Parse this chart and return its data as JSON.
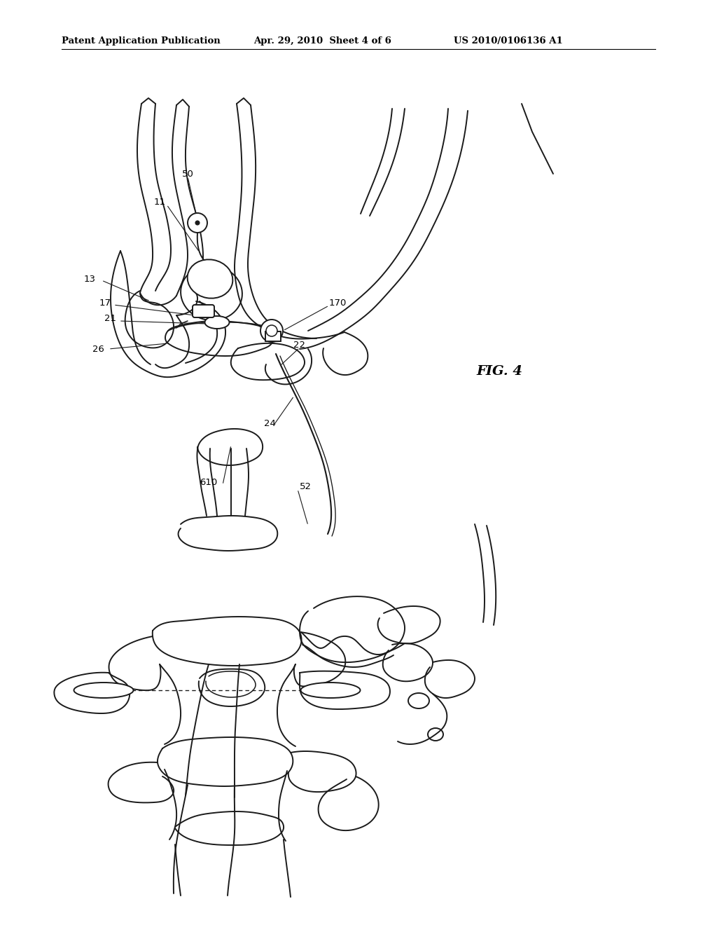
{
  "background_color": "#ffffff",
  "line_color": "#1a1a1a",
  "header_left": "Patent Application Publication",
  "header_mid": "Apr. 29, 2010  Sheet 4 of 6",
  "header_right": "US 2010/0106136 A1",
  "fig_label": "FIG. 4",
  "label_color": "#000000",
  "lw": 1.4,
  "figsize": [
    10.24,
    13.2
  ],
  "dpi": 100
}
